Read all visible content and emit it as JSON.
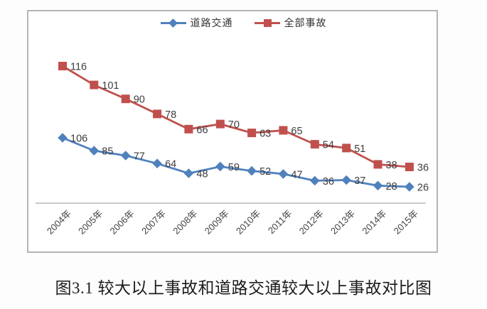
{
  "chart_data": {
    "type": "line",
    "title": "",
    "xlabel": "",
    "ylabel": "",
    "grid": false,
    "data_labels": true,
    "legend_position": "top",
    "categories": [
      "2004年",
      "2005年",
      "2006年",
      "2007年",
      "2008年",
      "2009年",
      "2010年",
      "2011年",
      "2012年",
      "2013年",
      "2014年",
      "2015年"
    ],
    "series": [
      {
        "name": "道路交通",
        "color": "#4F81BD",
        "marker": "diamond",
        "axis": "secondary",
        "values": [
          106,
          85,
          77,
          64,
          48,
          59,
          52,
          47,
          36,
          37,
          28,
          26
        ]
      },
      {
        "name": "全部事故",
        "color": "#C0504D",
        "marker": "square",
        "axis": "primary",
        "values": [
          116,
          101,
          90,
          78,
          66,
          70,
          63,
          65,
          54,
          51,
          38,
          36
        ]
      }
    ]
  },
  "colors": {
    "series_road_traffic": "#4F81BD",
    "series_all_accidents": "#C0504D",
    "axis_line": "#b9b9b9",
    "frame_border": "#b5b5b5",
    "label_text": "#3d3d3d"
  },
  "caption": "图3.1 较大以上事故和道路交通较大以上事故对比图"
}
